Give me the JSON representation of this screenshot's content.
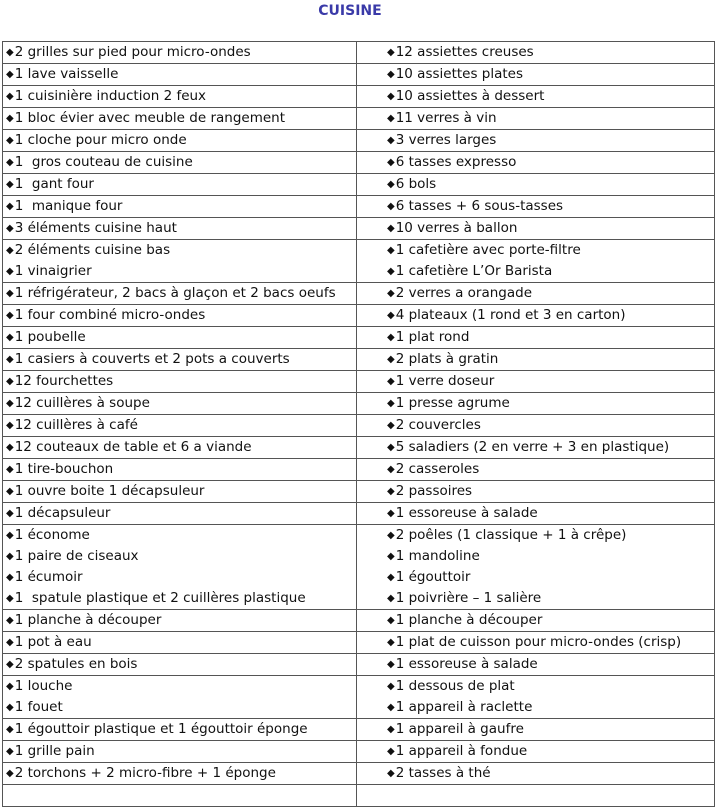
{
  "title": "CUISINE",
  "bullet": "◆",
  "rows": [
    {
      "left": [
        "2 grilles sur pied pour micro-ondes"
      ],
      "right": [
        "12 assiettes creuses"
      ]
    },
    {
      "left": [
        "1 lave vaisselle"
      ],
      "right": [
        "10 assiettes plates"
      ]
    },
    {
      "left": [
        "1 cuisinière induction 2 feux"
      ],
      "right": [
        "10 assiettes à dessert"
      ]
    },
    {
      "left": [
        "1 bloc évier avec meuble de rangement"
      ],
      "right": [
        "11 verres à vin"
      ]
    },
    {
      "left": [
        "1 cloche pour micro onde"
      ],
      "right": [
        "3 verres larges"
      ]
    },
    {
      "left": [
        "1  gros couteau de cuisine"
      ],
      "right": [
        "6 tasses expresso"
      ]
    },
    {
      "left": [
        "1  gant four"
      ],
      "right": [
        "6 bols"
      ]
    },
    {
      "left": [
        "1  manique four"
      ],
      "right": [
        "6 tasses + 6 sous-tasses"
      ]
    },
    {
      "left": [
        "3 éléments cuisine haut"
      ],
      "right": [
        "10 verres à ballon"
      ]
    },
    {
      "left": [
        "2 éléments cuisine bas",
        "1 vinaigrier"
      ],
      "right": [
        "1 cafetière avec porte-filtre",
        "1 cafetière L’Or Barista"
      ]
    },
    {
      "left": [
        "1 réfrigérateur, 2 bacs à glaçon et 2 bacs oeufs"
      ],
      "right": [
        "2 verres a orangade"
      ]
    },
    {
      "left": [
        "1 four combiné micro-ondes"
      ],
      "right": [
        "4 plateaux (1 rond et 3 en carton)"
      ]
    },
    {
      "left": [
        "1 poubelle"
      ],
      "right": [
        "1 plat rond"
      ]
    },
    {
      "left": [
        "1 casiers à couverts et 2 pots a couverts"
      ],
      "right": [
        "2 plats à gratin"
      ]
    },
    {
      "left": [
        "12 fourchettes"
      ],
      "right": [
        "1 verre doseur"
      ]
    },
    {
      "left": [
        "12 cuillères à soupe"
      ],
      "right": [
        "1 presse agrume"
      ]
    },
    {
      "left": [
        "12 cuillères à café"
      ],
      "right": [
        "2 couvercles"
      ]
    },
    {
      "left": [
        "12 couteaux de table et 6 a viande"
      ],
      "right": [
        "5 saladiers (2 en verre + 3 en plastique)"
      ]
    },
    {
      "left": [
        "1 tire-bouchon"
      ],
      "right": [
        "2 casseroles"
      ]
    },
    {
      "left": [
        "1 ouvre boite 1 décapsuleur"
      ],
      "right": [
        "2 passoires"
      ]
    },
    {
      "left": [
        "1 décapsuleur"
      ],
      "right": [
        "1 essoreuse à salade"
      ]
    },
    {
      "left": [
        "1 économe",
        "1 paire de ciseaux",
        "1 écumoir",
        "1  spatule plastique et 2 cuillères plastique"
      ],
      "right": [
        "2 poêles (1 classique + 1 à crêpe)",
        "1 mandoline",
        "1 égouttoir",
        "1 poivrière – 1 salière"
      ]
    },
    {
      "left": [
        "1 planche à découper"
      ],
      "right": [
        "1 planche à découper"
      ]
    },
    {
      "left": [
        "1 pot à eau"
      ],
      "right": [
        "1 plat de cuisson pour micro-ondes (crisp)"
      ]
    },
    {
      "left": [
        "2 spatules en bois"
      ],
      "right": [
        "1 essoreuse à salade"
      ]
    },
    {
      "left": [
        "1 louche",
        "1 fouet"
      ],
      "right": [
        "1 dessous de plat",
        "1 appareil à raclette"
      ]
    },
    {
      "left": [
        "1 égouttoir plastique et 1 égouttoir éponge"
      ],
      "right": [
        "1 appareil à gaufre"
      ]
    },
    {
      "left": [
        "1 grille pain"
      ],
      "right": [
        "1 appareil à fondue"
      ]
    },
    {
      "left": [
        "2 torchons + 2 micro-fibre + 1 éponge"
      ],
      "right": [
        "2 tasses à thé"
      ]
    },
    {
      "left": [
        ""
      ],
      "right": [
        ""
      ]
    }
  ]
}
